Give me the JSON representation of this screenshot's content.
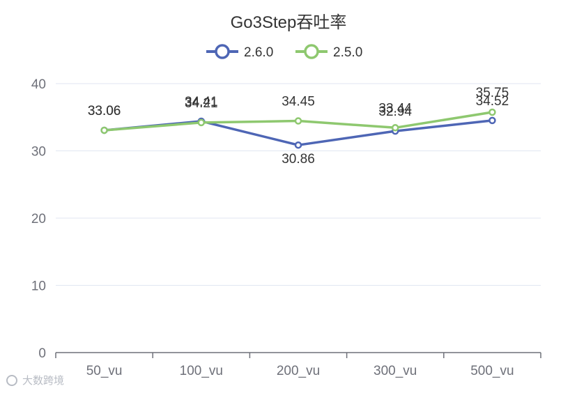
{
  "chart_data": {
    "type": "line",
    "title": "Go3Step吞吐率",
    "categories": [
      "50_vu",
      "100_vu",
      "200_vu",
      "300_vu",
      "500_vu"
    ],
    "series": [
      {
        "name": "2.6.0",
        "color": "#4e66b5",
        "values": [
          33.06,
          34.41,
          30.86,
          32.94,
          34.52
        ]
      },
      {
        "name": "2.5.0",
        "color": "#8ec86f",
        "values": [
          33.06,
          34.21,
          34.45,
          33.44,
          35.75
        ]
      }
    ],
    "yticks": [
      "0",
      "10",
      "20",
      "30",
      "40"
    ],
    "ylim": [
      0,
      40
    ],
    "grid": true,
    "legend": "top-center"
  },
  "watermark": "大数跨境"
}
